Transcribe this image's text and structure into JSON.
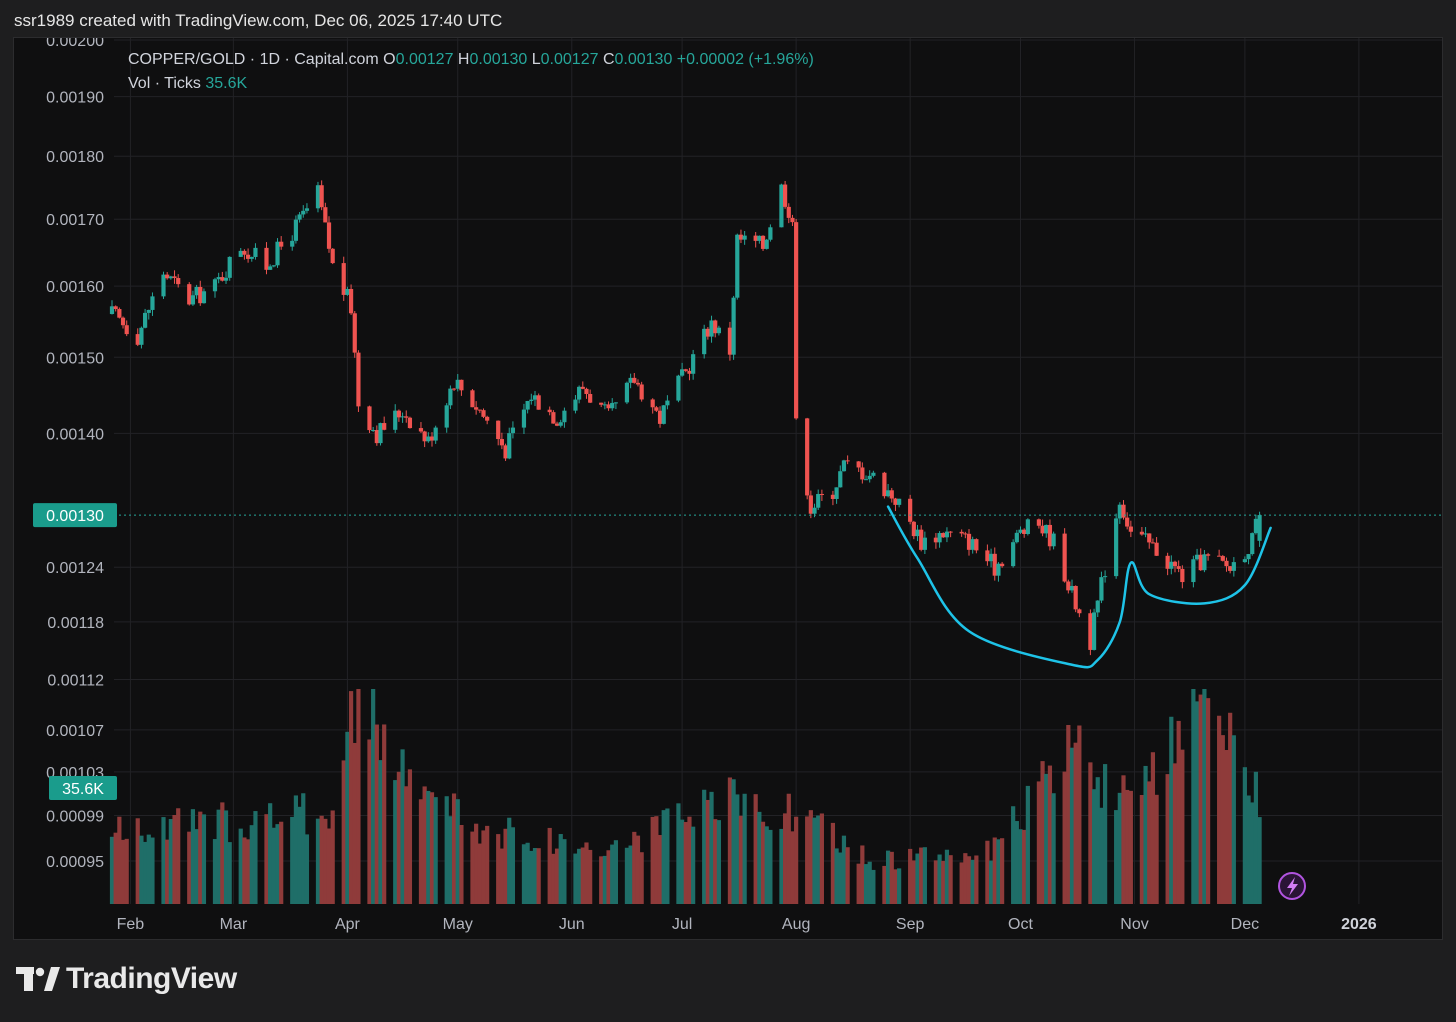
{
  "header": {
    "attribution": "ssr1989 created with TradingView.com, Dec 06, 2025 17:40 UTC"
  },
  "legend": {
    "symbol": "COPPER/GOLD · 1D · Capital.com",
    "o_label": "O",
    "o_value": "0.00127",
    "h_label": "H",
    "h_value": "0.00130",
    "l_label": "L",
    "l_value": "0.00127",
    "c_label": "C",
    "c_value": "0.00130",
    "change": "+0.00002 (+1.96%)",
    "vol_label": "Vol · Ticks",
    "vol_value": "35.6K"
  },
  "footer": {
    "brand": "TradingView"
  },
  "colors": {
    "up": "#26a69a",
    "down": "#ef5350",
    "vol_up": "#1f6e68",
    "vol_down": "#8f3b3a",
    "background": "#0f0f10",
    "grid": "#222226",
    "text": "#b2b5be",
    "drawing": "#1ec3e8",
    "price_label_bg": "#1a9c8c"
  },
  "icons": {
    "lightning": "lightning-icon",
    "logo": "tradingview-logo-icon"
  },
  "chart_data": {
    "type": "candlestick",
    "title": "COPPER/GOLD · 1D · Capital.com",
    "y_axis": {
      "ticks": [
        "0.00200",
        "0.00190",
        "0.00180",
        "0.00170",
        "0.00160",
        "0.00150",
        "0.00140",
        "0.00124",
        "0.00118",
        "0.00112",
        "0.00107",
        "0.00103",
        "0.00099",
        "0.00095"
      ],
      "scale": "log"
    },
    "x_axis": {
      "ticks": [
        "Feb",
        "Mar",
        "Apr",
        "May",
        "Jun",
        "Jul",
        "Aug",
        "Sep",
        "Oct",
        "Nov",
        "Dec",
        "2026"
      ],
      "range": [
        "2025-01-27",
        "2026-01-10"
      ]
    },
    "last_price": "0.00130",
    "last_volume": "35.6K",
    "grid": true,
    "legend_position": "top-left",
    "keypoints": [
      {
        "date": "2025-01-27",
        "close": 0.00156
      },
      {
        "date": "2025-02-03",
        "close": 0.00153
      },
      {
        "date": "2025-02-10",
        "close": 0.00162
      },
      {
        "date": "2025-02-17",
        "close": 0.00158
      },
      {
        "date": "2025-02-24",
        "close": 0.0016
      },
      {
        "date": "2025-03-03",
        "close": 0.00166
      },
      {
        "date": "2025-03-10",
        "close": 0.00163
      },
      {
        "date": "2025-03-17",
        "close": 0.00168
      },
      {
        "date": "2025-03-24",
        "close": 0.00174
      },
      {
        "date": "2025-03-28",
        "close": 0.00163
      },
      {
        "date": "2025-04-02",
        "close": 0.00157
      },
      {
        "date": "2025-04-04",
        "close": 0.00144
      },
      {
        "date": "2025-04-09",
        "close": 0.0014
      },
      {
        "date": "2025-04-16",
        "close": 0.00143
      },
      {
        "date": "2025-04-23",
        "close": 0.00139
      },
      {
        "date": "2025-04-30",
        "close": 0.00147
      },
      {
        "date": "2025-05-07",
        "close": 0.00143
      },
      {
        "date": "2025-05-14",
        "close": 0.00138
      },
      {
        "date": "2025-05-21",
        "close": 0.00145
      },
      {
        "date": "2025-05-28",
        "close": 0.00142
      },
      {
        "date": "2025-06-04",
        "close": 0.00146
      },
      {
        "date": "2025-06-11",
        "close": 0.00142
      },
      {
        "date": "2025-06-18",
        "close": 0.00147
      },
      {
        "date": "2025-06-25",
        "close": 0.00142
      },
      {
        "date": "2025-07-02",
        "close": 0.00148
      },
      {
        "date": "2025-07-09",
        "close": 0.00155
      },
      {
        "date": "2025-07-14",
        "close": 0.00151
      },
      {
        "date": "2025-07-16",
        "close": 0.00167
      },
      {
        "date": "2025-07-23",
        "close": 0.00166
      },
      {
        "date": "2025-07-28",
        "close": 0.00175
      },
      {
        "date": "2025-07-31",
        "close": 0.0017
      },
      {
        "date": "2025-08-01",
        "close": 0.00141
      },
      {
        "date": "2025-08-05",
        "close": 0.00131
      },
      {
        "date": "2025-08-11",
        "close": 0.00133
      },
      {
        "date": "2025-08-14",
        "close": 0.00136
      },
      {
        "date": "2025-08-21",
        "close": 0.00135
      },
      {
        "date": "2025-08-28",
        "close": 0.00132
      },
      {
        "date": "2025-09-04",
        "close": 0.00127
      },
      {
        "date": "2025-09-10",
        "close": 0.00128
      },
      {
        "date": "2025-09-17",
        "close": 0.00127
      },
      {
        "date": "2025-09-24",
        "close": 0.00124
      },
      {
        "date": "2025-10-01",
        "close": 0.00128
      },
      {
        "date": "2025-10-06",
        "close": 0.00129
      },
      {
        "date": "2025-10-10",
        "close": 0.00127
      },
      {
        "date": "2025-10-15",
        "close": 0.00121
      },
      {
        "date": "2025-10-20",
        "close": 0.00116
      },
      {
        "date": "2025-10-24",
        "close": 0.00124
      },
      {
        "date": "2025-10-28",
        "close": 0.00132
      },
      {
        "date": "2025-10-31",
        "close": 0.00128
      },
      {
        "date": "2025-11-07",
        "close": 0.00126
      },
      {
        "date": "2025-11-14",
        "close": 0.00123
      },
      {
        "date": "2025-11-20",
        "close": 0.00125
      },
      {
        "date": "2025-11-27",
        "close": 0.00124
      },
      {
        "date": "2025-12-03",
        "close": 0.00127
      },
      {
        "date": "2025-12-05",
        "close": 0.0013
      }
    ],
    "volume_keypoints": [
      {
        "date": "2025-01-27",
        "volume": 0.33
      },
      {
        "date": "2025-03-10",
        "volume": 0.4
      },
      {
        "date": "2025-03-28",
        "volume": 0.44
      },
      {
        "date": "2025-04-04",
        "volume": 1.0
      },
      {
        "date": "2025-04-16",
        "volume": 0.6
      },
      {
        "date": "2025-05-07",
        "volume": 0.35
      },
      {
        "date": "2025-06-11",
        "volume": 0.25
      },
      {
        "date": "2025-07-14",
        "volume": 0.48
      },
      {
        "date": "2025-08-01",
        "volume": 0.42
      },
      {
        "date": "2025-08-21",
        "volume": 0.2
      },
      {
        "date": "2025-09-24",
        "volume": 0.25
      },
      {
        "date": "2025-10-15",
        "volume": 0.73
      },
      {
        "date": "2025-10-31",
        "volume": 0.45
      },
      {
        "date": "2025-11-20",
        "volume": 0.9
      },
      {
        "date": "2025-12-05",
        "volume": 0.52
      }
    ]
  },
  "drawing": {
    "type": "cup-and-handle",
    "points": [
      {
        "date": "2025-08-26",
        "price": 0.00131
      },
      {
        "date": "2025-09-03",
        "price": 0.00125
      },
      {
        "date": "2025-09-17",
        "price": 0.00117
      },
      {
        "date": "2025-10-15",
        "price": 0.001135
      },
      {
        "date": "2025-10-22",
        "price": 0.00114
      },
      {
        "date": "2025-10-28",
        "price": 0.00118
      },
      {
        "date": "2025-10-31",
        "price": 0.001245
      },
      {
        "date": "2025-11-05",
        "price": 0.00121
      },
      {
        "date": "2025-11-20",
        "price": 0.0012
      },
      {
        "date": "2025-12-01",
        "price": 0.00122
      },
      {
        "date": "2025-12-08",
        "price": 0.001285
      }
    ]
  }
}
